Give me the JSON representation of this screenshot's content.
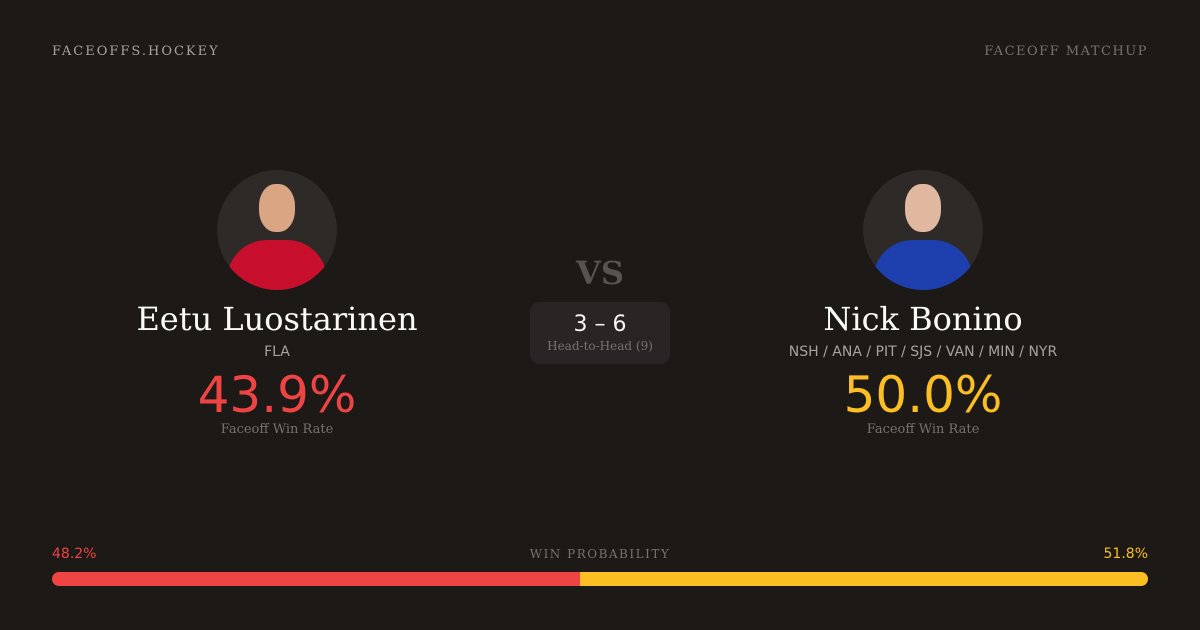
{
  "header": {
    "brand": "FACEOFFS.HOCKEY",
    "label": "FACEOFF MATCHUP"
  },
  "players": [
    {
      "name": "Eetu Luostarinen",
      "team": "FLA",
      "rate": "43.9%",
      "rate_label": "Faceoff Win Rate",
      "color": "#ef4444"
    },
    {
      "name": "Nick Bonino",
      "team": "NSH / ANA / PIT / SJS / VAN / MIN / NYR",
      "rate": "50.0%",
      "rate_label": "Faceoff Win Rate",
      "color": "#fbbf24"
    }
  ],
  "vs": "VS",
  "head_to_head": {
    "score": "3 – 6",
    "label": "Head-to-Head (9)"
  },
  "win_probability": {
    "label": "WIN PROBABILITY",
    "left": "48.2%",
    "right": "51.8%",
    "left_value": 48.2,
    "right_value": 51.8
  }
}
